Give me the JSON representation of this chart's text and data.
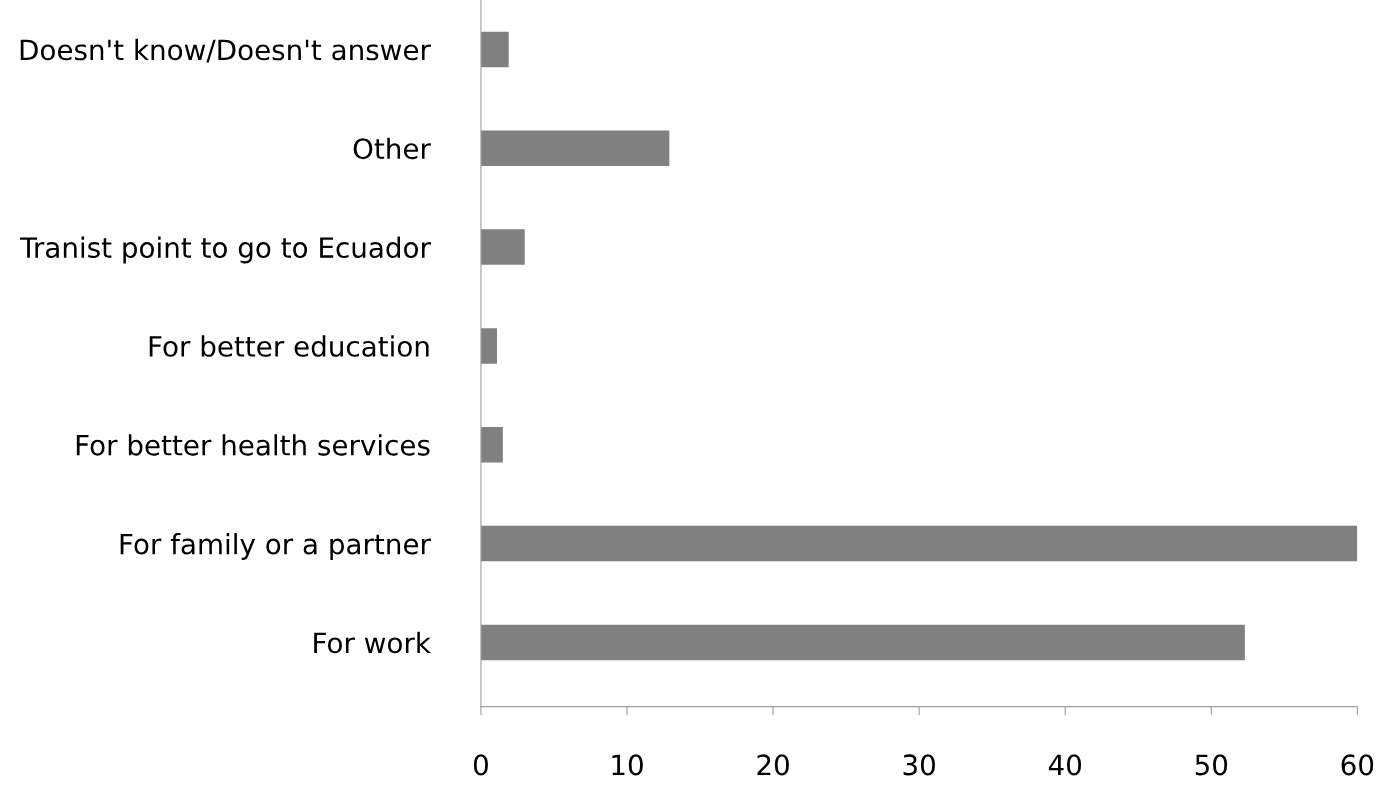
{
  "chart_data": {
    "type": "bar",
    "orientation": "horizontal",
    "categories": [
      "Doesn't know/Doesn't answer",
      "Other",
      "Tranist point to go to Ecuador",
      "For better education",
      "For better health services",
      "For family or a partner",
      "For work"
    ],
    "values": [
      1.9,
      12.9,
      3.0,
      1.1,
      1.5,
      60,
      52.3
    ],
    "color": "#808080",
    "xlim": [
      0,
      60
    ],
    "xticks": [
      0,
      10,
      20,
      30,
      40,
      50,
      60
    ],
    "grid": false
  }
}
